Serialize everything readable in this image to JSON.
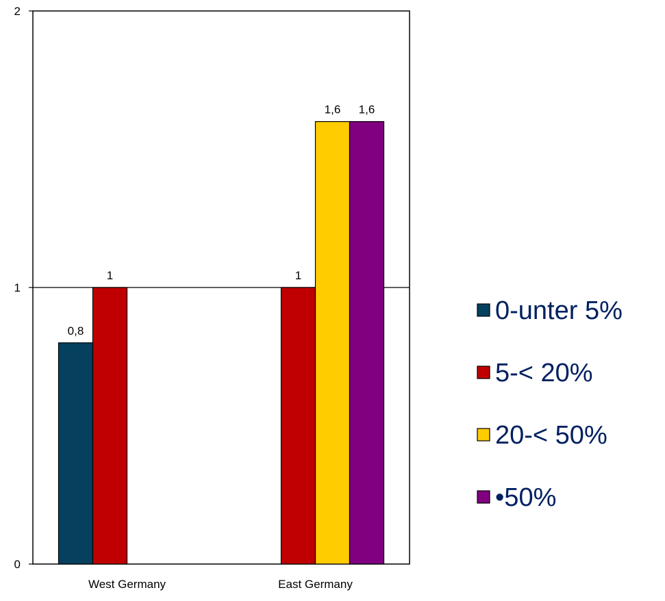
{
  "chart_data": {
    "type": "bar",
    "categories": [
      "West Germany",
      "East Germany"
    ],
    "series": [
      {
        "name": "0-unter 5%",
        "color": "#05415f",
        "values": [
          0.8,
          null
        ],
        "labels": [
          "0,8",
          ""
        ]
      },
      {
        "name": "5-< 20%",
        "color": "#c00000",
        "values": [
          1,
          1
        ],
        "labels": [
          "1",
          "1"
        ]
      },
      {
        "name": "20-< 50%",
        "color": "#ffcc00",
        "values": [
          null,
          1.6
        ],
        "labels": [
          "",
          "1,6"
        ]
      },
      {
        "name": "•50%",
        "color": "#800080",
        "values": [
          null,
          1.6
        ],
        "labels": [
          "",
          "1,6"
        ]
      }
    ],
    "yticks": [
      0,
      1,
      2
    ],
    "ylim": [
      0,
      2
    ],
    "grid": "horizontal at 1",
    "legend_position": "right",
    "legend_text_color": "#002060"
  }
}
